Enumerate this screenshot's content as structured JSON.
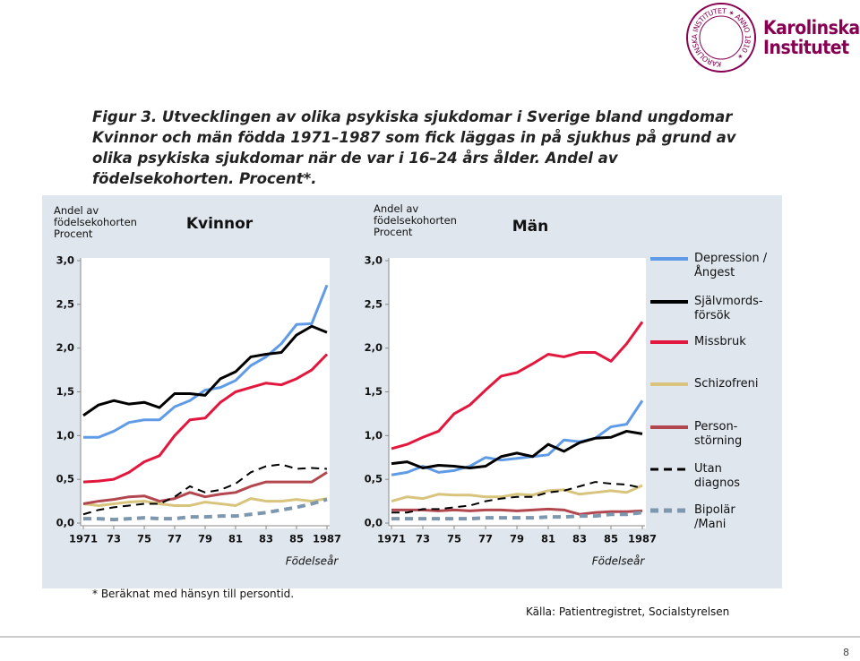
{
  "logo": {
    "name": "Karolinska Institutet",
    "seal": "KAROLINSKA INSTITUTET ✶ ANNO 1810 ✶"
  },
  "figure_title": "Figur 3. Utvecklingen av olika psykiska sjukdomar i Sverige bland ungdomar",
  "figure_description": "Kvinnor och män födda 1971–1987 som fick läggas in på sjukhus på grund av olika psykiska sjukdomar när de var i 16–24 års ålder. Andel av födelsekohorten. Procent*.",
  "footnote": "* Beräknat med hänsyn till persontid.",
  "source": "Källa: Patientregistret, Socialstyrelsen",
  "page_number": "8",
  "chart_data": [
    {
      "type": "line",
      "title": "Kvinnor",
      "y_label": "Andel av födelsekohorten Procent",
      "x_label": "Födelseår",
      "x": [
        1971,
        1972,
        1973,
        1974,
        1975,
        1976,
        1977,
        1978,
        1979,
        1980,
        1981,
        1982,
        1983,
        1984,
        1985,
        1986,
        1987
      ],
      "xlim": [
        1971,
        1987
      ],
      "xticks": [
        1971,
        {
          "value": 1973,
          "label": "73"
        },
        {
          "value": 1975,
          "label": "75"
        },
        {
          "value": 1977,
          "label": "77"
        },
        {
          "value": 1979,
          "label": "79"
        },
        {
          "value": 1981,
          "label": "81"
        },
        {
          "value": 1983,
          "label": "83"
        },
        {
          "value": 1985,
          "label": "85"
        },
        1987
      ],
      "ylim": [
        0,
        3
      ],
      "yticks": [
        {
          "value": 0,
          "label": "0,0"
        },
        {
          "value": 0.5,
          "label": "0,5"
        },
        {
          "value": 1,
          "label": "1,0"
        },
        {
          "value": 1.5,
          "label": "1,5"
        },
        {
          "value": 2,
          "label": "2,0"
        },
        {
          "value": 2.5,
          "label": "2,5"
        },
        {
          "value": 3,
          "label": "3,0"
        }
      ],
      "series": [
        {
          "color": "#5f9be6",
          "dash": false,
          "values": [
            0.98,
            0.98,
            1.05,
            1.15,
            1.18,
            1.18,
            1.33,
            1.4,
            1.52,
            1.55,
            1.63,
            1.8,
            1.9,
            2.05,
            2.27,
            2.28,
            2.72
          ]
        },
        {
          "color": "#000000",
          "dash": false,
          "values": [
            1.23,
            1.35,
            1.4,
            1.36,
            1.38,
            1.32,
            1.48,
            1.48,
            1.46,
            1.65,
            1.73,
            1.9,
            1.93,
            1.95,
            2.15,
            2.25,
            2.18
          ]
        },
        {
          "color": "#e3173d",
          "dash": false,
          "values": [
            0.47,
            0.48,
            0.5,
            0.58,
            0.7,
            0.77,
            1.0,
            1.18,
            1.2,
            1.38,
            1.5,
            1.55,
            1.6,
            1.58,
            1.65,
            1.75,
            1.93
          ]
        },
        {
          "color": "#d8c47c",
          "dash": false,
          "values": [
            0.22,
            0.2,
            0.22,
            0.24,
            0.25,
            0.22,
            0.2,
            0.2,
            0.24,
            0.22,
            0.2,
            0.28,
            0.25,
            0.25,
            0.27,
            0.25,
            0.28
          ]
        },
        {
          "color": "#b3474f",
          "dash": false,
          "values": [
            0.22,
            0.25,
            0.27,
            0.3,
            0.31,
            0.25,
            0.28,
            0.35,
            0.3,
            0.33,
            0.35,
            0.42,
            0.47,
            0.47,
            0.47,
            0.47,
            0.58
          ]
        },
        {
          "color": "#000000",
          "dash": true,
          "values": [
            0.1,
            0.15,
            0.18,
            0.2,
            0.22,
            0.22,
            0.3,
            0.42,
            0.35,
            0.38,
            0.45,
            0.58,
            0.65,
            0.67,
            0.62,
            0.63,
            0.62
          ]
        },
        {
          "color": "#7d97ae",
          "dash": true,
          "values": [
            0.05,
            0.05,
            0.04,
            0.05,
            0.06,
            0.05,
            0.05,
            0.07,
            0.07,
            0.08,
            0.08,
            0.1,
            0.12,
            0.15,
            0.18,
            0.22,
            0.27
          ]
        }
      ]
    },
    {
      "type": "line",
      "title": "Män",
      "y_label": "Andel av födelsekohorten Procent",
      "x_label": "Födelseår",
      "x": [
        1971,
        1972,
        1973,
        1974,
        1975,
        1976,
        1977,
        1978,
        1979,
        1980,
        1981,
        1982,
        1983,
        1984,
        1985,
        1986,
        1987
      ],
      "xlim": [
        1971,
        1987
      ],
      "xticks": [
        1971,
        {
          "value": 1973,
          "label": "73"
        },
        {
          "value": 1975,
          "label": "75"
        },
        {
          "value": 1977,
          "label": "77"
        },
        {
          "value": 1979,
          "label": "79"
        },
        {
          "value": 1981,
          "label": "81"
        },
        {
          "value": 1983,
          "label": "83"
        },
        {
          "value": 1985,
          "label": "85"
        },
        1987
      ],
      "ylim": [
        0,
        3
      ],
      "yticks": [
        {
          "value": 0,
          "label": "0,0"
        },
        {
          "value": 0.5,
          "label": "0,5"
        },
        {
          "value": 1,
          "label": "1,0"
        },
        {
          "value": 1.5,
          "label": "1,5"
        },
        {
          "value": 2,
          "label": "2,0"
        },
        {
          "value": 2.5,
          "label": "2,5"
        },
        {
          "value": 3,
          "label": "3,0"
        }
      ],
      "legend": "right",
      "series": [
        {
          "name": "Depression /Ångest",
          "color": "#5f9be6",
          "dash": false,
          "values": [
            0.55,
            0.58,
            0.65,
            0.58,
            0.6,
            0.65,
            0.75,
            0.72,
            0.74,
            0.76,
            0.78,
            0.95,
            0.93,
            0.97,
            1.1,
            1.13,
            1.4
          ]
        },
        {
          "name": "Självmords-försök",
          "color": "#000000",
          "dash": false,
          "values": [
            0.68,
            0.7,
            0.63,
            0.66,
            0.65,
            0.63,
            0.65,
            0.76,
            0.8,
            0.76,
            0.9,
            0.82,
            0.92,
            0.97,
            0.98,
            1.05,
            1.02
          ]
        },
        {
          "name": "Missbruk",
          "color": "#e3173d",
          "dash": false,
          "values": [
            0.85,
            0.9,
            0.98,
            1.05,
            1.25,
            1.35,
            1.52,
            1.68,
            1.72,
            1.82,
            1.93,
            1.9,
            1.95,
            1.95,
            1.85,
            2.05,
            2.3
          ]
        },
        {
          "name": "Schizofreni",
          "color": "#d8c47c",
          "dash": false,
          "values": [
            0.25,
            0.3,
            0.28,
            0.33,
            0.32,
            0.32,
            0.3,
            0.3,
            0.33,
            0.32,
            0.37,
            0.38,
            0.33,
            0.35,
            0.37,
            0.35,
            0.43
          ]
        },
        {
          "name": "Person-störning",
          "color": "#b3474f",
          "dash": false,
          "values": [
            0.15,
            0.15,
            0.15,
            0.14,
            0.15,
            0.14,
            0.15,
            0.15,
            0.14,
            0.15,
            0.16,
            0.15,
            0.1,
            0.12,
            0.13,
            0.13,
            0.14
          ]
        },
        {
          "name": "Utan diagnos",
          "color": "#000000",
          "dash": true,
          "values": [
            0.12,
            0.12,
            0.16,
            0.16,
            0.18,
            0.2,
            0.25,
            0.28,
            0.3,
            0.3,
            0.35,
            0.37,
            0.42,
            0.47,
            0.45,
            0.44,
            0.4
          ]
        },
        {
          "name": "Bipolär /Mani",
          "color": "#7d97ae",
          "dash": true,
          "values": [
            0.05,
            0.05,
            0.05,
            0.05,
            0.05,
            0.05,
            0.06,
            0.06,
            0.06,
            0.06,
            0.07,
            0.07,
            0.08,
            0.08,
            0.1,
            0.1,
            0.12
          ]
        }
      ]
    }
  ]
}
